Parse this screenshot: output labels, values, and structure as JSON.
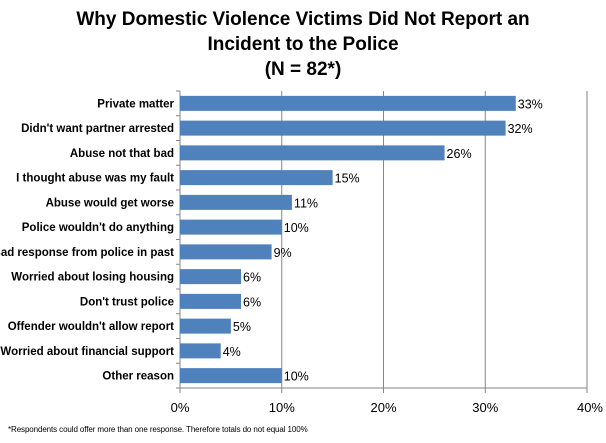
{
  "title_lines": [
    "Why Domestic  Violence Victims Did Not Report an",
    "Incident to the Police",
    "(N = 82*)"
  ],
  "footnote": "*Respondents could offer more than one response. Therefore totals do not equal 100%",
  "colors": {
    "bar": "#4f81bd",
    "grid": "#868686"
  },
  "chart_data": {
    "type": "bar",
    "orientation": "horizontal",
    "categories": [
      "Private matter",
      "Didn't want partner arrested",
      "Abuse not that bad",
      "I thought abuse was my fault",
      "Abuse would get worse",
      "Police wouldn't do anything",
      "Bad response from police in past",
      "Worried about losing housing",
      "Don't trust police",
      "Offender wouldn't allow report",
      "Worried about financial support",
      "Other reason"
    ],
    "values": [
      33,
      32,
      26,
      15,
      11,
      10,
      9,
      6,
      6,
      5,
      4,
      10
    ],
    "data_labels": [
      "33%",
      "32%",
      "26%",
      "15%",
      "11%",
      "10%",
      "9%",
      "6%",
      "6%",
      "5%",
      "4%",
      "10%"
    ],
    "xlim": [
      0,
      40
    ],
    "xticks": [
      0,
      10,
      20,
      30,
      40
    ],
    "xtick_labels": [
      "0%",
      "10%",
      "20%",
      "30%",
      "40%"
    ],
    "grid": true,
    "legend": "none"
  }
}
